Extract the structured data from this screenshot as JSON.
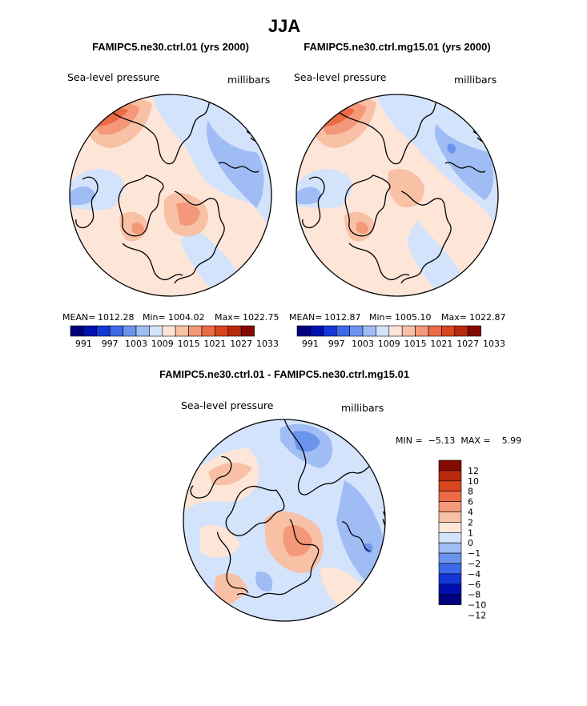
{
  "chart_data": {
    "type": "contour-map",
    "title": "JJA",
    "variable": "Sea-level pressure",
    "units": "millibars",
    "colors": {
      "abs": [
        "#00007f",
        "#0010b0",
        "#1438d8",
        "#3c6ae8",
        "#6a94ee",
        "#9fbcf4",
        "#d2e3fb",
        "#fde5d8",
        "#f8c0a5",
        "#f39878",
        "#eb6b44",
        "#d8451e",
        "#b82a0c",
        "#840a00"
      ],
      "diff": [
        "#00007f",
        "#0010b0",
        "#1438d8",
        "#3c6ae8",
        "#6a94ee",
        "#9fbcf4",
        "#d2e3fb",
        "#fde5d8",
        "#f8c0a5",
        "#f39878",
        "#eb6b44",
        "#d8451e",
        "#b82a0c",
        "#840a00"
      ],
      "land": "#000000"
    },
    "panels": [
      {
        "title": "FAMIPC5.ne30.ctrl.01 (yrs 2000)",
        "left_label": "Sea-level pressure",
        "right_label": "millibars",
        "stats": {
          "mean_label": "MEAN=",
          "mean": "1012.28",
          "min_label": "Min=",
          "min": "1004.02",
          "max_label": "Max=",
          "max": "1022.75"
        },
        "colorbar_labels": [
          "991",
          "997",
          "1003",
          "1009",
          "1015",
          "1021",
          "1027",
          "1033"
        ]
      },
      {
        "title": "FAMIPC5.ne30.ctrl.mg15.01 (yrs 2000)",
        "left_label": "Sea-level pressure",
        "right_label": "millibars",
        "stats": {
          "mean_label": "MEAN=",
          "mean": "1012.87",
          "min_label": "Min=",
          "min": "1005.10",
          "max_label": "Max=",
          "max": "1022.87"
        },
        "colorbar_labels": [
          "991",
          "997",
          "1003",
          "1009",
          "1015",
          "1021",
          "1027",
          "1033"
        ]
      }
    ],
    "difference": {
      "title": "FAMIPC5.ne30.ctrl.01 - FAMIPC5.ne30.ctrl.mg15.01",
      "left_label": "Sea-level pressure",
      "right_label": "millibars",
      "minmax_text": "MIN =  −5.13  MAX =    5.99",
      "min": -5.13,
      "max": 5.99,
      "colorbar_labels": [
        "12",
        "10",
        "8",
        "6",
        "4",
        "2",
        "1",
        "0",
        "−1",
        "−2",
        "−4",
        "−6",
        "−8",
        "−10",
        "−12"
      ]
    }
  }
}
